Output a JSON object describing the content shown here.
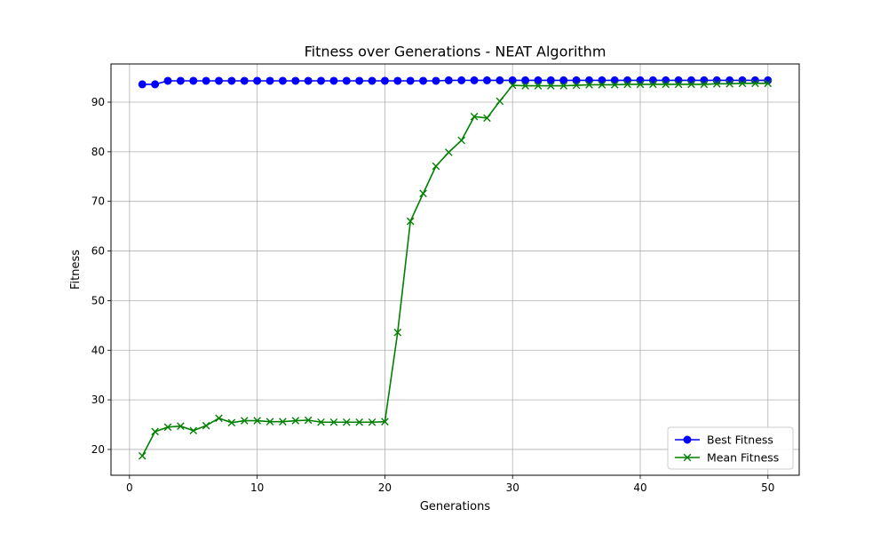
{
  "chart_data": {
    "type": "line",
    "title": "Fitness over Generations - NEAT Algorithm",
    "xlabel": "Generations",
    "ylabel": "Fitness",
    "xlim": [
      -1.45,
      52.45
    ],
    "ylim": [
      14.8,
      97.7
    ],
    "xticks": [
      0,
      10,
      20,
      30,
      40,
      50
    ],
    "yticks": [
      20,
      30,
      40,
      50,
      60,
      70,
      80,
      90
    ],
    "grid": true,
    "legend_position": "lower right",
    "x": [
      1,
      2,
      3,
      4,
      5,
      6,
      7,
      8,
      9,
      10,
      11,
      12,
      13,
      14,
      15,
      16,
      17,
      18,
      19,
      20,
      21,
      22,
      23,
      24,
      25,
      26,
      27,
      28,
      29,
      30,
      31,
      32,
      33,
      34,
      35,
      36,
      37,
      38,
      39,
      40,
      41,
      42,
      43,
      44,
      45,
      46,
      47,
      48,
      49,
      50
    ],
    "series": [
      {
        "name": "Best Fitness",
        "color": "#0000ff",
        "marker": "circle",
        "values": [
          93.6,
          93.6,
          94.3,
          94.3,
          94.3,
          94.3,
          94.3,
          94.3,
          94.3,
          94.3,
          94.3,
          94.3,
          94.3,
          94.3,
          94.3,
          94.3,
          94.3,
          94.3,
          94.3,
          94.3,
          94.3,
          94.3,
          94.3,
          94.3,
          94.4,
          94.4,
          94.4,
          94.4,
          94.4,
          94.4,
          94.4,
          94.4,
          94.4,
          94.4,
          94.4,
          94.4,
          94.4,
          94.4,
          94.4,
          94.4,
          94.4,
          94.4,
          94.4,
          94.4,
          94.4,
          94.4,
          94.4,
          94.4,
          94.4,
          94.4
        ]
      },
      {
        "name": "Mean Fitness",
        "color": "#008000",
        "marker": "x",
        "values": [
          18.7,
          23.6,
          24.5,
          24.7,
          23.8,
          24.8,
          26.3,
          25.4,
          25.8,
          25.8,
          25.6,
          25.6,
          25.8,
          25.9,
          25.5,
          25.5,
          25.5,
          25.5,
          25.5,
          25.6,
          43.6,
          66.0,
          71.6,
          77.1,
          79.9,
          82.3,
          87.1,
          86.8,
          90.2,
          93.4,
          93.3,
          93.3,
          93.3,
          93.3,
          93.4,
          93.5,
          93.5,
          93.5,
          93.6,
          93.6,
          93.6,
          93.6,
          93.6,
          93.6,
          93.6,
          93.7,
          93.7,
          93.8,
          93.8,
          93.8
        ]
      }
    ]
  }
}
